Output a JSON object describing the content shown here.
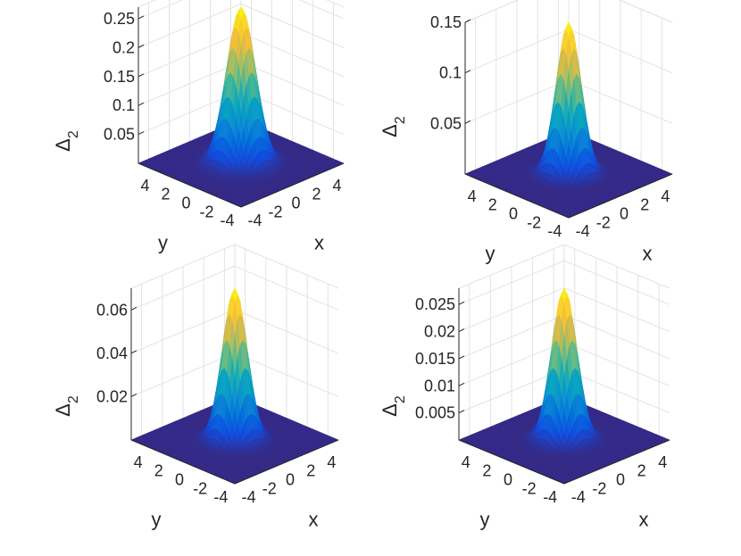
{
  "chart_data": [
    {
      "type": "surface",
      "title": "",
      "xlabel": "x",
      "ylabel": "y",
      "zlabel_main": "Δ",
      "zlabel_sub": "2",
      "xlim": [
        -5,
        5
      ],
      "ylim": [
        -5,
        5
      ],
      "zlim": [
        0,
        0.27
      ],
      "x_ticks": [
        "-4",
        "-2",
        "0",
        "2",
        "4"
      ],
      "y_ticks": [
        "4",
        "2",
        "0",
        "-2",
        "-4"
      ],
      "z_ticks": [
        0.05,
        0.1,
        0.15,
        0.2,
        0.25
      ],
      "z_tick_labels": [
        "0.05",
        "0.1",
        "0.15",
        "0.2",
        "0.25"
      ],
      "peak": 0.27,
      "width": 1.0,
      "colormap": "parula"
    },
    {
      "type": "surface",
      "title": "",
      "xlabel": "x",
      "ylabel": "y",
      "zlabel_main": "Δ",
      "zlabel_sub": "2",
      "xlim": [
        -5,
        5
      ],
      "ylim": [
        -5,
        5
      ],
      "zlim": [
        0,
        0.15
      ],
      "x_ticks": [
        "-4",
        "-2",
        "0",
        "2",
        "4"
      ],
      "y_ticks": [
        "4",
        "2",
        "0",
        "-2",
        "-4"
      ],
      "z_ticks": [
        0.05,
        0.1,
        0.15
      ],
      "z_tick_labels": [
        "0.05",
        "0.1",
        "0.15"
      ],
      "peak": 0.15,
      "width": 0.85,
      "colormap": "parula"
    },
    {
      "type": "surface",
      "title": "",
      "xlabel": "x",
      "ylabel": "y",
      "zlabel_main": "Δ",
      "zlabel_sub": "2",
      "xlim": [
        -5,
        5
      ],
      "ylim": [
        -5,
        5
      ],
      "zlim": [
        0,
        0.07
      ],
      "x_ticks": [
        "-4",
        "-2",
        "0",
        "2",
        "4"
      ],
      "y_ticks": [
        "4",
        "2",
        "0",
        "-2",
        "-4"
      ],
      "z_ticks": [
        0.02,
        0.04,
        0.06
      ],
      "z_tick_labels": [
        "0.02",
        "0.04",
        "0.06"
      ],
      "peak": 0.07,
      "width": 0.85,
      "colormap": "parula"
    },
    {
      "type": "surface",
      "title": "",
      "xlabel": "x",
      "ylabel": "y",
      "zlabel_main": "Δ",
      "zlabel_sub": "2",
      "xlim": [
        -5,
        5
      ],
      "ylim": [
        -5,
        5
      ],
      "zlim": [
        0,
        0.028
      ],
      "x_ticks": [
        "-4",
        "-2",
        "0",
        "2",
        "4"
      ],
      "y_ticks": [
        "4",
        "2",
        "0",
        "-2",
        "-4"
      ],
      "z_ticks": [
        0.005,
        0.01,
        0.015,
        0.02,
        0.025
      ],
      "z_tick_labels": [
        "0.005",
        "0.01",
        "0.015",
        "0.02",
        "0.025"
      ],
      "peak": 0.028,
      "width": 0.85,
      "colormap": "parula"
    }
  ]
}
